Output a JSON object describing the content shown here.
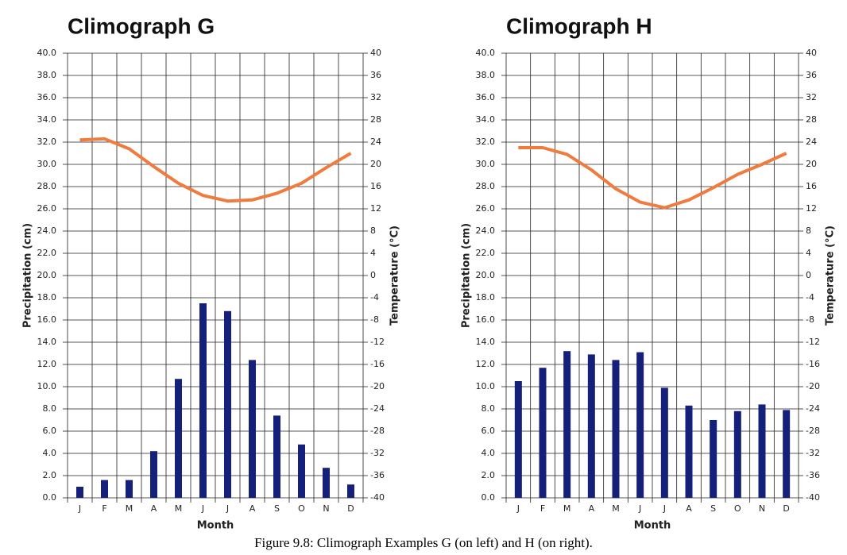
{
  "chart_data": [
    {
      "type": "combo",
      "title": "Climograph G",
      "x_label": "Month",
      "y_label": "Precipitation (cm)",
      "y2_label": "Temperature (°C)",
      "categories": [
        "J",
        "F",
        "M",
        "A",
        "M",
        "J",
        "J",
        "A",
        "S",
        "O",
        "N",
        "D"
      ],
      "series": [
        {
          "kind": "bar",
          "color": "#15207a",
          "values": [
            1.0,
            1.6,
            1.6,
            4.2,
            10.7,
            17.5,
            16.8,
            12.4,
            7.4,
            4.8,
            2.7,
            1.2
          ]
        },
        {
          "kind": "line",
          "axis": "y2",
          "color": "#ef7b3e",
          "values": [
            24.4,
            24.6,
            22.8,
            19.6,
            16.6,
            14.4,
            13.4,
            13.6,
            14.8,
            16.6,
            19.4,
            22.0
          ]
        }
      ],
      "ylim": [
        0,
        40
      ],
      "yticks": [
        {
          "value": 0,
          "label": "0.0"
        },
        {
          "value": 2,
          "label": "2.0"
        },
        {
          "value": 4,
          "label": "4.0"
        },
        {
          "value": 6,
          "label": "6.0"
        },
        {
          "value": 8,
          "label": "8.0"
        },
        {
          "value": 10,
          "label": "10.0"
        },
        {
          "value": 12,
          "label": "12.0"
        },
        {
          "value": 14,
          "label": "14.0"
        },
        {
          "value": 16,
          "label": "16.0"
        },
        {
          "value": 18,
          "label": "18.0"
        },
        {
          "value": 20,
          "label": "20.0"
        },
        {
          "value": 22,
          "label": "22.0"
        },
        {
          "value": 24,
          "label": "24.0"
        },
        {
          "value": 26,
          "label": "26.0"
        },
        {
          "value": 28,
          "label": "28.0"
        },
        {
          "value": 30,
          "label": "30.0"
        },
        {
          "value": 32,
          "label": "32.0"
        },
        {
          "value": 34,
          "label": "34.0"
        },
        {
          "value": 36,
          "label": "36.0"
        },
        {
          "value": 38,
          "label": "38.0"
        },
        {
          "value": 40,
          "label": "40.0"
        }
      ],
      "y2lim": [
        -40,
        40
      ],
      "y2ticks": [
        -40,
        -36,
        -32,
        -28,
        -24,
        -20,
        -16,
        -12,
        -8,
        -4,
        0,
        4,
        8,
        12,
        16,
        20,
        24,
        28,
        32,
        36,
        40
      ],
      "grid": true
    },
    {
      "type": "combo",
      "title": "Climograph H",
      "x_label": "Month",
      "y_label": "Precipitation (cm)",
      "y2_label": "Temperature (°C)",
      "categories": [
        "J",
        "F",
        "M",
        "A",
        "M",
        "J",
        "J",
        "A",
        "S",
        "O",
        "N",
        "D"
      ],
      "series": [
        {
          "kind": "bar",
          "color": "#15207a",
          "values": [
            10.5,
            11.7,
            13.2,
            12.9,
            12.4,
            13.1,
            9.9,
            8.3,
            7.0,
            7.8,
            8.4,
            7.9
          ]
        },
        {
          "kind": "line",
          "axis": "y2",
          "color": "#ef7b3e",
          "values": [
            23.0,
            23.0,
            21.8,
            19.0,
            15.6,
            13.2,
            12.2,
            13.6,
            15.8,
            18.2,
            20.0,
            22.0
          ]
        }
      ],
      "ylim": [
        0,
        40
      ],
      "yticks": [
        {
          "value": 0,
          "label": "0.0"
        },
        {
          "value": 2,
          "label": "2.0"
        },
        {
          "value": 4,
          "label": "4.0"
        },
        {
          "value": 6,
          "label": "6.0"
        },
        {
          "value": 8,
          "label": "8.0"
        },
        {
          "value": 10,
          "label": "10.0"
        },
        {
          "value": 12,
          "label": "12.0"
        },
        {
          "value": 14,
          "label": "14.0"
        },
        {
          "value": 16,
          "label": "16.0"
        },
        {
          "value": 18,
          "label": "18.0"
        },
        {
          "value": 20,
          "label": "20.0"
        },
        {
          "value": 22,
          "label": "22.0"
        },
        {
          "value": 24,
          "label": "24.0"
        },
        {
          "value": 26,
          "label": "26.0"
        },
        {
          "value": 28,
          "label": "28.0"
        },
        {
          "value": 30,
          "label": "30.0"
        },
        {
          "value": 32,
          "label": "32.0"
        },
        {
          "value": 34,
          "label": "34.0"
        },
        {
          "value": 36,
          "label": "36.0"
        },
        {
          "value": 38,
          "label": "38.0"
        },
        {
          "value": 40,
          "label": "40.0"
        }
      ],
      "y2lim": [
        -40,
        40
      ],
      "y2ticks": [
        -40,
        -36,
        -32,
        -28,
        -24,
        -20,
        -16,
        -12,
        -8,
        -4,
        0,
        4,
        8,
        12,
        16,
        20,
        24,
        28,
        32,
        36,
        40
      ],
      "grid": true
    }
  ],
  "caption": "Figure 9.8: Climograph Examples G (on left) and H (on right)."
}
